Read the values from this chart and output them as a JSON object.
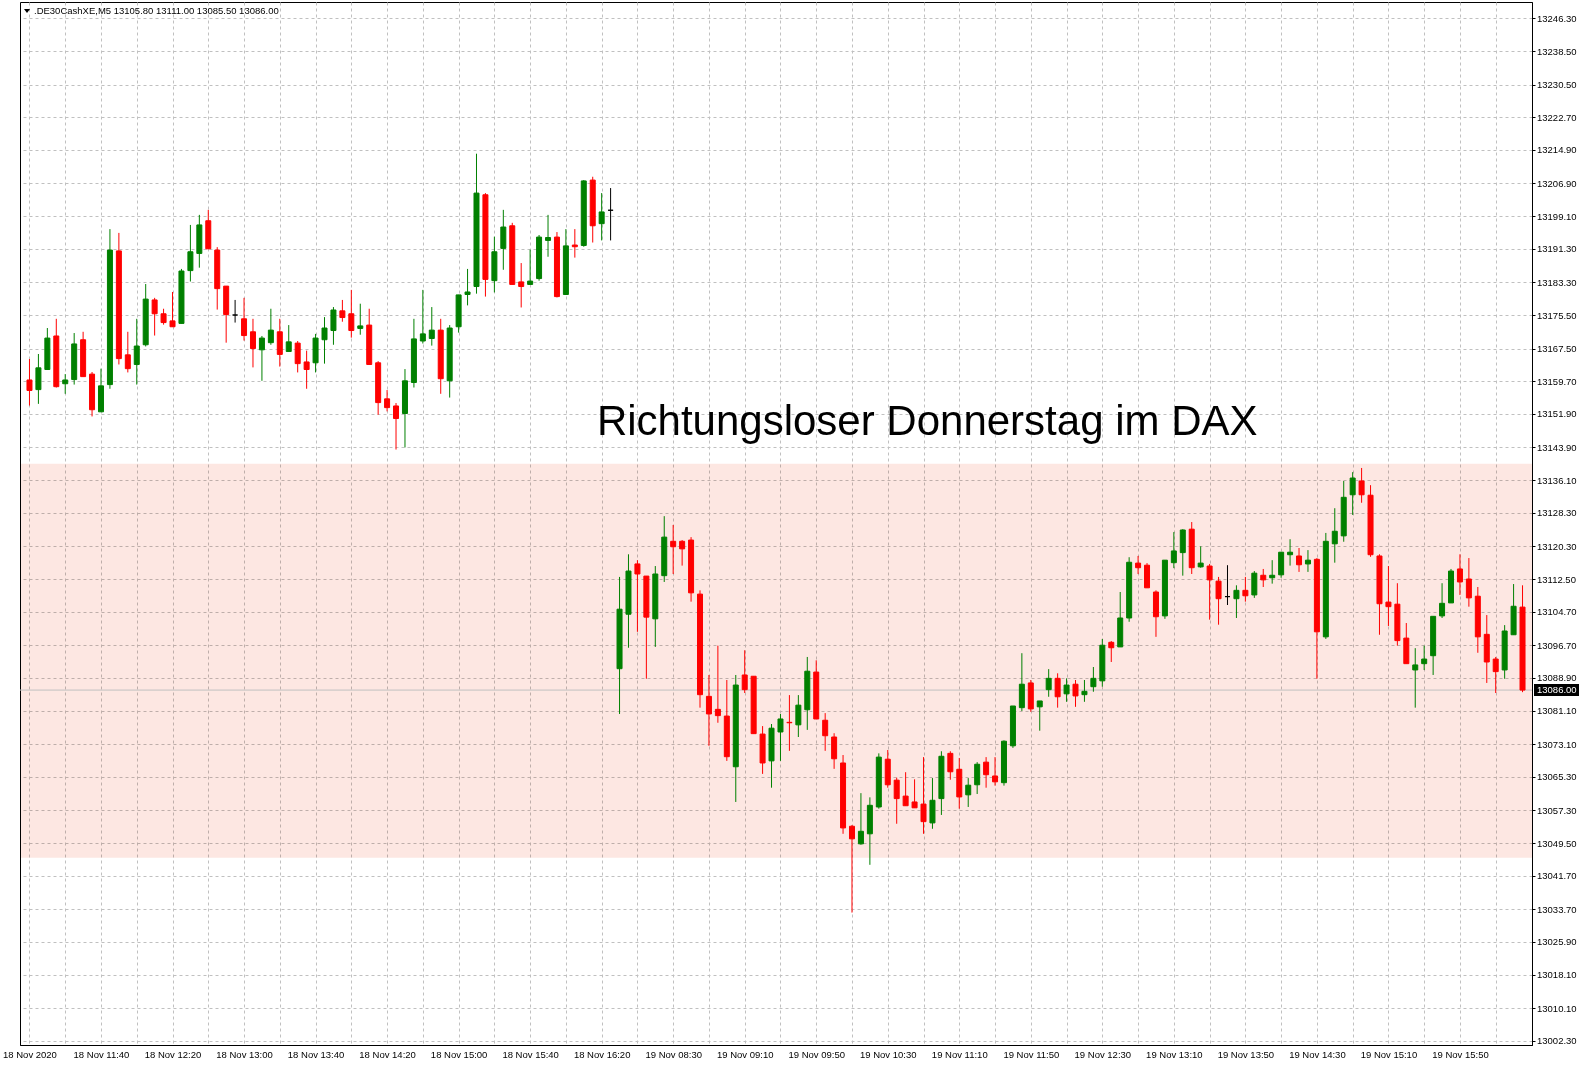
{
  "chart_data": {
    "type": "candlestick",
    "title": ".DE30CashXE,M5 13105.80 13111.00 13085.50 13086.00",
    "categories": [
      "18 Nov 2020",
      null,
      null,
      null,
      null,
      null,
      null,
      null,
      "18 Nov 11:40",
      null,
      null,
      null,
      null,
      null,
      null,
      null,
      "18 Nov 12:20",
      null,
      null,
      null,
      null,
      null,
      null,
      null,
      "18 Nov 13:00",
      null,
      null,
      null,
      null,
      null,
      null,
      null,
      "18 Nov 13:40",
      null,
      null,
      null,
      null,
      null,
      null,
      null,
      "18 Nov 14:20",
      null,
      null,
      null,
      null,
      null,
      null,
      null,
      "18 Nov 15:00",
      null,
      null,
      null,
      null,
      null,
      null,
      null,
      "18 Nov 15:40",
      null,
      null,
      null,
      null,
      null,
      null,
      null,
      "18 Nov 16:20",
      null,
      null,
      null,
      null,
      null,
      null,
      null,
      "19 Nov 08:30",
      null,
      null,
      null,
      null,
      null,
      null,
      null,
      "19 Nov 09:10",
      null,
      null,
      null,
      null,
      null,
      null,
      null,
      "19 Nov 09:50",
      null,
      null,
      null,
      null,
      null,
      null,
      null,
      "19 Nov 10:30",
      null,
      null,
      null,
      null,
      null,
      null,
      null,
      "19 Nov 11:10",
      null,
      null,
      null,
      null,
      null,
      null,
      null,
      "19 Nov 11:50",
      null,
      null,
      null,
      null,
      null,
      null,
      null,
      "19 Nov 12:30",
      null,
      null,
      null,
      null,
      null,
      null,
      null,
      "19 Nov 13:10",
      null,
      null,
      null,
      null,
      null,
      null,
      null,
      "19 Nov 13:50",
      null,
      null,
      null,
      null,
      null,
      null,
      null,
      "19 Nov 14:30",
      null,
      null,
      null,
      null,
      null,
      null,
      null,
      "19 Nov 15:10",
      null,
      null,
      null,
      null,
      null,
      null,
      null,
      "19 Nov 15:50",
      null,
      null,
      null,
      null,
      null,
      null,
      null
    ],
    "ohlc": [
      [
        13160.0,
        13165.0,
        13153.9,
        13157.5
      ],
      [
        13157.7,
        13166.2,
        13154.3,
        13162.9
      ],
      [
        13162.5,
        13172.4,
        13162.5,
        13170.0
      ],
      [
        13170.5,
        13174.6,
        13158.2,
        13158.4
      ],
      [
        13159.1,
        13161.4,
        13156.7,
        13160.0
      ],
      [
        13160.1,
        13171.2,
        13158.9,
        13168.6
      ],
      [
        13169.6,
        13171.5,
        13160.8,
        13160.8
      ],
      [
        13161.4,
        13161.9,
        13151.3,
        13152.9
      ],
      [
        13152.4,
        13162.7,
        13152.4,
        13158.6
      ],
      [
        13158.9,
        13196.0,
        13157.9,
        13191.0
      ],
      [
        13190.8,
        13195.1,
        13163.7,
        13165.1
      ],
      [
        13166.0,
        13171.5,
        13161.8,
        13162.7
      ],
      [
        13163.7,
        13174.6,
        13158.9,
        13168.1
      ],
      [
        13168.4,
        13182.9,
        13168.0,
        13179.3
      ],
      [
        13179.1,
        13179.6,
        13170.6,
        13175.8
      ],
      [
        13175.8,
        13177.0,
        13173.2,
        13173.7
      ],
      [
        13174.1,
        13181.0,
        13172.7,
        13172.7
      ],
      [
        13173.5,
        13186.5,
        13173.5,
        13186.0
      ],
      [
        13186.1,
        13197.0,
        13183.5,
        13190.6
      ],
      [
        13190.2,
        13199.4,
        13186.8,
        13197.0
      ],
      [
        13198.0,
        13200.6,
        13191.3,
        13191.3
      ],
      [
        13191.0,
        13191.7,
        13176.8,
        13181.8
      ],
      [
        13182.4,
        13182.4,
        13168.9,
        13175.6
      ],
      [
        13175.5,
        13179.1,
        13173.7,
        13175.5
      ],
      [
        13174.6,
        13179.6,
        13169.4,
        13170.6
      ],
      [
        13171.5,
        13174.6,
        13163.0,
        13167.5
      ],
      [
        13167.2,
        13170.5,
        13159.8,
        13170.0
      ],
      [
        13168.9,
        13177.0,
        13168.4,
        13171.9
      ],
      [
        13171.5,
        13174.6,
        13163.2,
        13166.1
      ],
      [
        13166.8,
        13173.1,
        13166.8,
        13169.1
      ],
      [
        13168.8,
        13169.3,
        13161.8,
        13163.9
      ],
      [
        13164.3,
        13167.0,
        13157.9,
        13162.5
      ],
      [
        13164.1,
        13171.0,
        13161.8,
        13170.0
      ],
      [
        13169.6,
        13175.0,
        13163.9,
        13172.4
      ],
      [
        13171.8,
        13177.4,
        13168.4,
        13176.7
      ],
      [
        13176.5,
        13179.1,
        13173.9,
        13174.9
      ],
      [
        13175.8,
        13181.5,
        13170.1,
        13171.8
      ],
      [
        13172.3,
        13178.2,
        13170.8,
        13172.9
      ],
      [
        13173.1,
        13177.0,
        13163.7,
        13163.7
      ],
      [
        13164.1,
        13164.5,
        13151.7,
        13154.6
      ],
      [
        13155.5,
        13157.6,
        13152.5,
        13153.4
      ],
      [
        13153.8,
        13154.5,
        13143.4,
        13150.8
      ],
      [
        13152.0,
        13162.6,
        13143.9,
        13159.8
      ],
      [
        13159.4,
        13174.6,
        13158.2,
        13169.8
      ],
      [
        13169.3,
        13181.5,
        13168.7,
        13171.0
      ],
      [
        13169.9,
        13177.4,
        13168.2,
        13171.9
      ],
      [
        13171.9,
        13174.6,
        13156.7,
        13160.3
      ],
      [
        13159.8,
        13173.1,
        13155.8,
        13172.4
      ],
      [
        13172.7,
        13180.3,
        13171.3,
        13180.3
      ],
      [
        13180.4,
        13186.5,
        13177.8,
        13181.0
      ],
      [
        13182.3,
        13214.0,
        13180.6,
        13204.6
      ],
      [
        13204.2,
        13204.6,
        13179.9,
        13184.0
      ],
      [
        13183.7,
        13194.2,
        13180.9,
        13190.6
      ],
      [
        13191.4,
        13200.6,
        13186.3,
        13196.5
      ],
      [
        13196.8,
        13197.5,
        13182.8,
        13182.8
      ],
      [
        13183.4,
        13187.9,
        13177.3,
        13182.3
      ],
      [
        13182.8,
        13191.1,
        13182.8,
        13183.6
      ],
      [
        13184.2,
        13194.6,
        13183.7,
        13194.1
      ],
      [
        13193.3,
        13199.4,
        13189.4,
        13194.0
      ],
      [
        13194.1,
        13195.3,
        13179.7,
        13179.9
      ],
      [
        13180.4,
        13196.0,
        13180.4,
        13192.0
      ],
      [
        13192.2,
        13196.0,
        13189.2,
        13191.8
      ],
      [
        13192.1,
        13207.7,
        13191.8,
        13207.5
      ],
      [
        13207.7,
        13208.5,
        13192.8,
        13196.8
      ],
      [
        13197.3,
        13204.6,
        13193.3,
        13200.1
      ],
      [
        13200.5,
        13205.8,
        13193.3,
        13200.5
      ],
      [
        13091.1,
        13113.0,
        13080.3,
        13105.3
      ],
      [
        13104.1,
        13118.4,
        13096.1,
        13114.4
      ],
      [
        13116.1,
        13117.0,
        13099.9,
        13113.7
      ],
      [
        13113.2,
        13113.2,
        13088.7,
        13103.4
      ],
      [
        13103.0,
        13115.6,
        13096.3,
        13113.7
      ],
      [
        13113.3,
        13127.5,
        13111.8,
        13122.5
      ],
      [
        13121.5,
        13125.4,
        13113.7,
        13120.2
      ],
      [
        13121.5,
        13121.8,
        13115.7,
        13119.7
      ],
      [
        13121.8,
        13122.5,
        13107.1,
        13109.2
      ],
      [
        13108.9,
        13109.8,
        13081.8,
        13084.9
      ],
      [
        13084.5,
        13089.6,
        13072.7,
        13080.3
      ],
      [
        13081.4,
        13096.6,
        13078.2,
        13079.9
      ],
      [
        13079.8,
        13088.4,
        13069.1,
        13070.1
      ],
      [
        13067.7,
        13089.6,
        13059.3,
        13087.2
      ],
      [
        13089.6,
        13095.5,
        13085.3,
        13086.1
      ],
      [
        13089.3,
        13089.3,
        13075.6,
        13075.6
      ],
      [
        13075.5,
        13077.4,
        13066.0,
        13068.6
      ],
      [
        13069.1,
        13077.9,
        13062.7,
        13076.9
      ],
      [
        13076.0,
        13080.3,
        13069.1,
        13079.1
      ],
      [
        13078.3,
        13084.8,
        13071.5,
        13078.2
      ],
      [
        13077.7,
        13084.8,
        13074.8,
        13082.4
      ],
      [
        13081.3,
        13093.9,
        13076.5,
        13090.5
      ],
      [
        13090.3,
        13093.1,
        13079.1,
        13079.1
      ],
      [
        13078.8,
        13080.5,
        13071.5,
        13075.1
      ],
      [
        13074.8,
        13075.7,
        13067.2,
        13069.6
      ],
      [
        13068.6,
        13070.5,
        13051.7,
        13053.1
      ],
      [
        13053.5,
        13053.8,
        13032.9,
        13050.5
      ],
      [
        13049.3,
        13061.4,
        13049.1,
        13052.3
      ],
      [
        13051.7,
        13060.4,
        13044.3,
        13058.5
      ],
      [
        13058.1,
        13070.9,
        13057.7,
        13070.0
      ],
      [
        13069.5,
        13071.7,
        13062.7,
        13063.4
      ],
      [
        13064.5,
        13065.1,
        13054.1,
        13060.1
      ],
      [
        13060.7,
        13066.4,
        13058.4,
        13058.4
      ],
      [
        13059.3,
        13064.7,
        13057.9,
        13057.9
      ],
      [
        13058.8,
        13070.0,
        13051.7,
        13054.6
      ],
      [
        13054.3,
        13065.0,
        13052.9,
        13059.7
      ],
      [
        13060.1,
        13071.4,
        13056.2,
        13070.2
      ],
      [
        13070.9,
        13071.4,
        13064.6,
        13066.5
      ],
      [
        13067.1,
        13069.8,
        13057.7,
        13060.5
      ],
      [
        13061.0,
        13065.0,
        13058.1,
        13063.3
      ],
      [
        13063.4,
        13068.8,
        13061.2,
        13068.3
      ],
      [
        13068.8,
        13070.0,
        13062.7,
        13065.8
      ],
      [
        13065.5,
        13070.0,
        13063.2,
        13064.1
      ],
      [
        13063.9,
        13074.0,
        13063.2,
        13073.8
      ],
      [
        13072.7,
        13082.2,
        13072.2,
        13082.2
      ],
      [
        13081.8,
        13094.8,
        13081.0,
        13087.4
      ],
      [
        13087.7,
        13088.4,
        13080.8,
        13081.5
      ],
      [
        13082.0,
        13083.4,
        13076.3,
        13083.4
      ],
      [
        13086.1,
        13091.0,
        13084.4,
        13088.8
      ],
      [
        13088.8,
        13090.0,
        13081.8,
        13084.4
      ],
      [
        13085.1,
        13088.8,
        13083.2,
        13087.2
      ],
      [
        13087.4,
        13088.4,
        13082.0,
        13084.6
      ],
      [
        13084.9,
        13088.4,
        13083.2,
        13085.7
      ],
      [
        13086.8,
        13091.5,
        13085.6,
        13088.8
      ],
      [
        13088.2,
        13098.2,
        13086.8,
        13096.7
      ],
      [
        13097.4,
        13097.7,
        13092.7,
        13096.1
      ],
      [
        13096.3,
        13109.4,
        13096.3,
        13103.2
      ],
      [
        13103.2,
        13117.7,
        13102.3,
        13116.5
      ],
      [
        13116.3,
        13118.0,
        13113.7,
        13115.2
      ],
      [
        13115.8,
        13116.3,
        13110.4,
        13110.4
      ],
      [
        13109.4,
        13109.8,
        13098.7,
        13103.5
      ],
      [
        13103.7,
        13117.0,
        13103.0,
        13117.0
      ],
      [
        13116.4,
        13123.7,
        13115.1,
        13119.2
      ],
      [
        13118.8,
        13124.4,
        13113.3,
        13124.2
      ],
      [
        13124.4,
        13126.1,
        13113.7,
        13115.2
      ],
      [
        13115.4,
        13120.3,
        13115.2,
        13116.3
      ],
      [
        13115.6,
        13116.1,
        13102.8,
        13112.3
      ],
      [
        13112.0,
        13113.0,
        13101.6,
        13107.8
      ],
      [
        13108.3,
        13115.8,
        13106.3,
        13108.3
      ],
      [
        13107.8,
        13111.0,
        13103.2,
        13109.8
      ],
      [
        13109.8,
        13113.0,
        13107.1,
        13108.5
      ],
      [
        13108.7,
        13114.4,
        13108.0,
        13113.9
      ],
      [
        13113.4,
        13114.9,
        13110.6,
        13112.3
      ],
      [
        13112.8,
        13117.0,
        13111.4,
        13113.4
      ],
      [
        13113.5,
        13118.9,
        13112.8,
        13118.9
      ],
      [
        13118.3,
        13122.0,
        13115.7,
        13118.9
      ],
      [
        13118.0,
        13119.9,
        13114.2,
        13115.9
      ],
      [
        13116.1,
        13119.4,
        13114.2,
        13117.0
      ],
      [
        13117.2,
        13117.5,
        13088.7,
        13099.9
      ],
      [
        13098.7,
        13123.5,
        13098.2,
        13121.5
      ],
      [
        13120.9,
        13129.4,
        13116.4,
        13123.9
      ],
      [
        13122.8,
        13135.9,
        13121.4,
        13132.0
      ],
      [
        13132.6,
        13138.0,
        13127.8,
        13136.6
      ],
      [
        13135.9,
        13139.0,
        13130.7,
        13132.6
      ],
      [
        13132.5,
        13134.9,
        13117.8,
        13118.3
      ],
      [
        13118.0,
        13118.4,
        13099.2,
        13106.6
      ],
      [
        13107.0,
        13115.6,
        13101.3,
        13105.9
      ],
      [
        13106.5,
        13111.5,
        13096.6,
        13097.8
      ],
      [
        13098.4,
        13102.0,
        13092.3,
        13092.3
      ],
      [
        13090.8,
        13096.0,
        13081.8,
        13092.0
      ],
      [
        13092.3,
        13096.6,
        13090.8,
        13093.4
      ],
      [
        13094.2,
        13103.6,
        13089.6,
        13103.6
      ],
      [
        13103.7,
        13111.5,
        13103.2,
        13106.7
      ],
      [
        13106.8,
        13114.9,
        13106.8,
        13114.4
      ],
      [
        13114.9,
        13118.4,
        13108.7,
        13111.8
      ],
      [
        13112.5,
        13117.5,
        13105.9,
        13108.0
      ],
      [
        13108.4,
        13110.6,
        13094.9,
        13098.7
      ],
      [
        13099.3,
        13103.9,
        13087.7,
        13092.7
      ],
      [
        13093.4,
        13093.9,
        13085.3,
        13090.4
      ],
      [
        13090.8,
        13101.5,
        13088.7,
        13100.1
      ],
      [
        13099.2,
        13111.3,
        13099.2,
        13106.0
      ],
      [
        13105.8,
        13111.0,
        13085.5,
        13086.0
      ]
    ],
    "colors": [
      "#ff0000",
      "#008000",
      "#008000",
      "#ff0000",
      "#008000",
      "#008000",
      "#ff0000",
      "#ff0000",
      "#008000",
      "#008000",
      "#ff0000",
      "#ff0000",
      "#008000",
      "#008000",
      "#ff0000",
      "#ff0000",
      "#ff0000",
      "#008000",
      "#008000",
      "#008000",
      "#ff0000",
      "#ff0000",
      "#ff0000",
      "#000000",
      "#ff0000",
      "#ff0000",
      "#008000",
      "#008000",
      "#ff0000",
      "#008000",
      "#ff0000",
      "#ff0000",
      "#008000",
      "#008000",
      "#008000",
      "#ff0000",
      "#ff0000",
      "#008000",
      "#ff0000",
      "#ff0000",
      "#ff0000",
      "#ff0000",
      "#008000",
      "#008000",
      "#008000",
      "#008000",
      "#ff0000",
      "#008000",
      "#008000",
      "#008000",
      "#008000",
      "#ff0000",
      "#008000",
      "#008000",
      "#ff0000",
      "#ff0000",
      "#008000",
      "#008000",
      "#008000",
      "#ff0000",
      "#008000",
      "#ff0000",
      "#008000",
      "#ff0000",
      "#008000",
      "#000000",
      "#008000",
      "#008000",
      "#ff0000",
      "#ff0000",
      "#008000",
      "#008000",
      "#ff0000",
      "#ff0000",
      "#ff0000",
      "#ff0000",
      "#ff0000",
      "#ff0000",
      "#ff0000",
      "#008000",
      "#ff0000",
      "#ff0000",
      "#ff0000",
      "#008000",
      "#008000",
      "#ff0000",
      "#008000",
      "#008000",
      "#ff0000",
      "#ff0000",
      "#ff0000",
      "#ff0000",
      "#ff0000",
      "#008000",
      "#008000",
      "#008000",
      "#ff0000",
      "#ff0000",
      "#ff0000",
      "#ff0000",
      "#ff0000",
      "#008000",
      "#008000",
      "#ff0000",
      "#ff0000",
      "#008000",
      "#008000",
      "#ff0000",
      "#ff0000",
      "#008000",
      "#008000",
      "#008000",
      "#ff0000",
      "#008000",
      "#008000",
      "#ff0000",
      "#008000",
      "#ff0000",
      "#008000",
      "#008000",
      "#008000",
      "#ff0000",
      "#008000",
      "#008000",
      "#ff0000",
      "#ff0000",
      "#ff0000",
      "#008000",
      "#008000",
      "#008000",
      "#ff0000",
      "#008000",
      "#ff0000",
      "#ff0000",
      "#000000",
      "#008000",
      "#ff0000",
      "#008000",
      "#ff0000",
      "#008000",
      "#008000",
      "#008000",
      "#ff0000",
      "#008000",
      "#ff0000",
      "#008000",
      "#008000",
      "#008000",
      "#008000",
      "#ff0000",
      "#ff0000",
      "#ff0000",
      "#ff0000",
      "#ff0000",
      "#ff0000",
      "#008000",
      "#008000",
      "#008000",
      "#008000",
      "#008000",
      "#ff0000",
      "#ff0000",
      "#ff0000",
      "#ff0000",
      "#ff0000",
      "#008000",
      "#008000",
      "#ff0000"
    ],
    "ylim": [
      13001.3,
      13250.2
    ],
    "yticks": [
      {
        "value": 13002.3,
        "label": "13002.30"
      },
      {
        "value": 13010.1,
        "label": "13010.10"
      },
      {
        "value": 13018.1,
        "label": "13018.10"
      },
      {
        "value": 13025.9,
        "label": "13025.90"
      },
      {
        "value": 13033.7,
        "label": "13033.70"
      },
      {
        "value": 13041.7,
        "label": "13041.70"
      },
      {
        "value": 13049.5,
        "label": "13049.50"
      },
      {
        "value": 13057.3,
        "label": "13057.30"
      },
      {
        "value": 13065.3,
        "label": "13065.30"
      },
      {
        "value": 13073.1,
        "label": "13073.10"
      },
      {
        "value": 13081.1,
        "label": "13081.10"
      },
      {
        "value": 13088.9,
        "label": "13088.90"
      },
      {
        "value": 13096.7,
        "label": "13096.70"
      },
      {
        "value": 13104.7,
        "label": "13104.70"
      },
      {
        "value": 13112.5,
        "label": "13112.50"
      },
      {
        "value": 13120.3,
        "label": "13120.30"
      },
      {
        "value": 13128.3,
        "label": "13128.30"
      },
      {
        "value": 13136.1,
        "label": "13136.10"
      },
      {
        "value": 13143.9,
        "label": "13143.90"
      },
      {
        "value": 13151.9,
        "label": "13151.90"
      },
      {
        "value": 13159.7,
        "label": "13159.70"
      },
      {
        "value": 13167.5,
        "label": "13167.50"
      },
      {
        "value": 13175.5,
        "label": "13175.50"
      },
      {
        "value": 13183.3,
        "label": "13183.30"
      },
      {
        "value": 13191.3,
        "label": "13191.30"
      },
      {
        "value": 13199.1,
        "label": "13199.10"
      },
      {
        "value": 13206.9,
        "label": "13206.90"
      },
      {
        "value": 13214.9,
        "label": "13214.90"
      },
      {
        "value": 13222.7,
        "label": "13222.70"
      },
      {
        "value": 13230.5,
        "label": "13230.50"
      },
      {
        "value": 13238.5,
        "label": "13238.50"
      },
      {
        "value": 13246.3,
        "label": "13246.30"
      }
    ],
    "grid": true,
    "ref_lines": [
      {
        "axis": "y",
        "value": 13086.0,
        "label": "13086.00",
        "color": "#c0c0c0"
      }
    ],
    "bands": [
      {
        "axis": "y",
        "from": 13046,
        "to": 13140,
        "label": "Richtungsloser Donnerstag im DAX",
        "color": "#fde7e2"
      }
    ]
  }
}
